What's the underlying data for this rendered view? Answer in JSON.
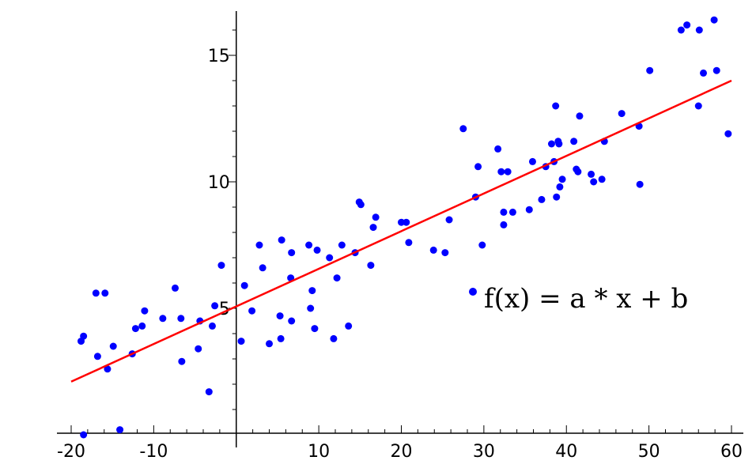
{
  "chart_data": {
    "type": "scatter",
    "title": "",
    "xlabel": "",
    "ylabel": "",
    "xlim": [
      -20,
      60
    ],
    "ylim": [
      0,
      17
    ],
    "x_ticks": [
      -20,
      -10,
      10,
      20,
      30,
      40,
      50,
      60
    ],
    "y_ticks": [
      5,
      10,
      15
    ],
    "grid": false,
    "point_color": "#0000ff",
    "line_color": "#ff0000",
    "annotation": "f(x) = a * x + b",
    "series": [
      {
        "type": "scatter",
        "points": [
          [
            -18.8,
            3.7
          ],
          [
            -18.5,
            3.9
          ],
          [
            -18.5,
            0.0
          ],
          [
            -17.0,
            5.6
          ],
          [
            -16.8,
            3.1
          ],
          [
            -15.9,
            5.6
          ],
          [
            -15.6,
            2.6
          ],
          [
            -14.9,
            3.5
          ],
          [
            -14.1,
            0.2
          ],
          [
            -12.6,
            3.2
          ],
          [
            -12.2,
            4.2
          ],
          [
            -11.4,
            4.3
          ],
          [
            -11.1,
            4.9
          ],
          [
            -8.9,
            4.6
          ],
          [
            -7.4,
            5.8
          ],
          [
            -6.7,
            4.6
          ],
          [
            -6.6,
            2.9
          ],
          [
            -4.6,
            3.4
          ],
          [
            -4.4,
            4.5
          ],
          [
            -3.3,
            1.7
          ],
          [
            -2.9,
            4.3
          ],
          [
            -1.8,
            6.7
          ],
          [
            -2.6,
            5.1
          ],
          [
            0.6,
            3.7
          ],
          [
            1.0,
            5.9
          ],
          [
            1.9,
            4.9
          ],
          [
            2.8,
            7.5
          ],
          [
            3.2,
            6.6
          ],
          [
            4.0,
            3.6
          ],
          [
            5.3,
            4.7
          ],
          [
            5.5,
            7.7
          ],
          [
            5.4,
            3.8
          ],
          [
            6.6,
            6.2
          ],
          [
            6.7,
            7.2
          ],
          [
            6.7,
            4.5
          ],
          [
            8.8,
            7.5
          ],
          [
            9.0,
            5.0
          ],
          [
            9.2,
            5.7
          ],
          [
            9.5,
            4.2
          ],
          [
            9.8,
            7.3
          ],
          [
            11.3,
            7.0
          ],
          [
            11.8,
            3.8
          ],
          [
            12.2,
            6.2
          ],
          [
            12.8,
            7.5
          ],
          [
            13.6,
            4.3
          ],
          [
            14.4,
            7.2
          ],
          [
            14.9,
            9.2
          ],
          [
            15.1,
            9.1
          ],
          [
            16.3,
            6.7
          ],
          [
            16.6,
            8.2
          ],
          [
            16.9,
            8.6
          ],
          [
            20.0,
            8.4
          ],
          [
            20.6,
            8.4
          ],
          [
            20.9,
            7.6
          ],
          [
            23.9,
            7.3
          ],
          [
            25.3,
            7.2
          ],
          [
            25.8,
            8.5
          ],
          [
            27.5,
            12.1
          ],
          [
            29.0,
            9.4
          ],
          [
            29.3,
            10.6
          ],
          [
            29.8,
            7.5
          ],
          [
            31.7,
            11.3
          ],
          [
            32.1,
            10.4
          ],
          [
            32.4,
            8.3
          ],
          [
            32.4,
            8.8
          ],
          [
            32.9,
            10.4
          ],
          [
            33.5,
            8.8
          ],
          [
            35.5,
            8.9
          ],
          [
            35.9,
            10.8
          ],
          [
            37.0,
            9.3
          ],
          [
            37.5,
            10.6
          ],
          [
            38.2,
            11.5
          ],
          [
            38.5,
            10.8
          ],
          [
            38.7,
            13.0
          ],
          [
            38.8,
            9.4
          ],
          [
            39.0,
            11.6
          ],
          [
            39.1,
            11.5
          ],
          [
            39.2,
            9.8
          ],
          [
            39.5,
            10.1
          ],
          [
            40.9,
            11.6
          ],
          [
            41.2,
            10.5
          ],
          [
            41.4,
            10.4
          ],
          [
            41.6,
            12.6
          ],
          [
            43.0,
            10.3
          ],
          [
            43.3,
            10.0
          ],
          [
            44.3,
            10.1
          ],
          [
            44.6,
            11.6
          ],
          [
            46.7,
            12.7
          ],
          [
            48.8,
            12.2
          ],
          [
            48.9,
            9.9
          ],
          [
            50.1,
            14.4
          ],
          [
            53.9,
            16.0
          ],
          [
            54.6,
            16.2
          ],
          [
            56.0,
            13.0
          ],
          [
            56.1,
            16.0
          ],
          [
            56.6,
            14.3
          ],
          [
            57.9,
            16.4
          ],
          [
            58.2,
            14.4
          ],
          [
            59.6,
            11.9
          ]
        ]
      },
      {
        "type": "line",
        "points": [
          [
            -20,
            2.1
          ],
          [
            60,
            14.0
          ]
        ]
      }
    ]
  }
}
